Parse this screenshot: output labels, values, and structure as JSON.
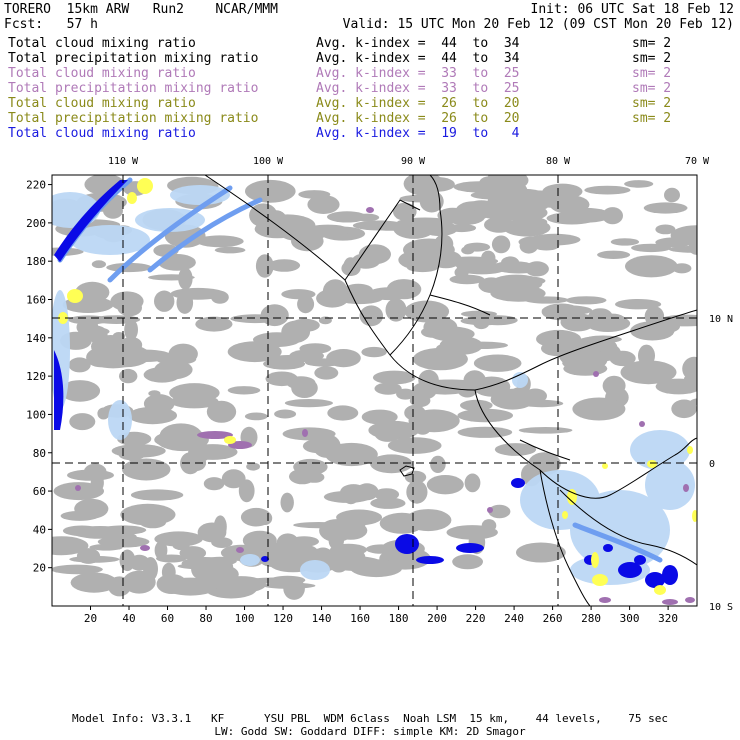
{
  "header": {
    "model": "TORERO  15km ARW   Run2    NCAR/MMM",
    "init": "Init: 06 UTC Sat 18 Feb 12",
    "fcst": "Fcst:   57 h",
    "valid": "Valid: 15 UTC Mon 20 Feb 12 (09 CST Mon 20 Feb 12)"
  },
  "legend": [
    {
      "name": "Total cloud mixing ratio",
      "avg": "Avg. k-index =  44  to  34",
      "sm": "sm= 2",
      "color": "#000000"
    },
    {
      "name": "Total precipitation mixing ratio",
      "avg": "Avg. k-index =  44  to  34",
      "sm": "sm= 2",
      "color": "#000000"
    },
    {
      "name": "Total cloud mixing ratio",
      "avg": "Avg. k-index =  33  to  25",
      "sm": "sm= 2",
      "color": "#b07ab8"
    },
    {
      "name": "Total precipitation mixing ratio",
      "avg": "Avg. k-index =  33  to  25",
      "sm": "sm= 2",
      "color": "#b07ab8"
    },
    {
      "name": "Total cloud mixing ratio",
      "avg": "Avg. k-index =  26  to  20",
      "sm": "sm= 2",
      "color": "#8a8a1a"
    },
    {
      "name": "Total precipitation mixing ratio",
      "avg": "Avg. k-index =  26  to  20",
      "sm": "sm= 2",
      "color": "#8a8a1a"
    },
    {
      "name": "Total cloud mixing ratio",
      "avg": "Avg. k-index =  19  to   4",
      "sm": "",
      "color": "#1a1ae0"
    }
  ],
  "map": {
    "lon_labels": [
      "110 W",
      "100 W",
      "90 W",
      "80 W",
      "70 W"
    ],
    "lat_labels": [
      "10 N",
      "0",
      "10 S"
    ],
    "x_ticks": [
      "20",
      "40",
      "60",
      "80",
      "100",
      "120",
      "140",
      "160",
      "180",
      "200",
      "220",
      "240",
      "260",
      "280",
      "300",
      "320"
    ],
    "y_ticks": [
      "220",
      "200",
      "180",
      "160",
      "140",
      "120",
      "100",
      "80",
      "60",
      "40",
      "20"
    ],
    "colors": {
      "cloud_gray": "#a8a8a8",
      "light_blue": "#bcd8f5",
      "mid_blue": "#6f9ef0",
      "dark_blue": "#0a0ae6",
      "purple": "#a070b0",
      "yellow": "#ffff55",
      "coast": "#000000"
    }
  },
  "footer": {
    "line1": "Model Info: V3.3.1   KF      YSU PBL  WDM 6class  Noah LSM  15 km,    44 levels,    75 sec",
    "line2": "LW: Godd SW: Goddard DIFF: simple KM: 2D Smagor"
  }
}
